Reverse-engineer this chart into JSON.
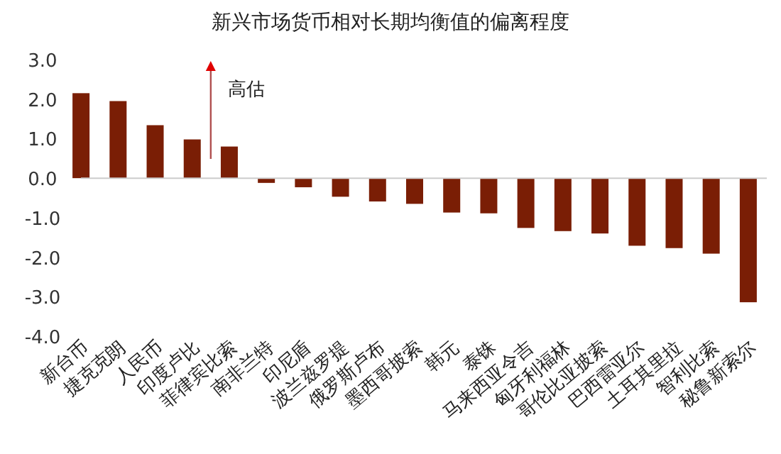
{
  "chart_data": {
    "type": "bar",
    "title": "新兴市场货币相对长期均衡值的偏离程度",
    "categories": [
      "新台币",
      "捷克克朗",
      "人民币",
      "印度卢比",
      "菲律宾比索",
      "南非兰特",
      "印尼盾",
      "波兰兹罗提",
      "俄罗斯卢布",
      "墨西哥披索",
      "韩元",
      "泰铢",
      "马来西亚令吉",
      "匈牙利福林",
      "哥伦比亚披索",
      "巴西雷亚尔",
      "土耳其里拉",
      "智利比索",
      "秘鲁新索尔"
    ],
    "values": [
      2.15,
      1.95,
      1.34,
      0.98,
      0.8,
      -0.12,
      -0.23,
      -0.47,
      -0.59,
      -0.65,
      -0.87,
      -0.89,
      -1.26,
      -1.34,
      -1.4,
      -1.71,
      -1.77,
      -1.91,
      -3.14
    ],
    "color": "#7a1e05",
    "ylim": [
      -4,
      3
    ],
    "yticks": [
      {
        "value": 3,
        "label": "3.0"
      },
      {
        "value": 2,
        "label": "2.0"
      },
      {
        "value": 1,
        "label": "1.0"
      },
      {
        "value": 0,
        "label": "0.0"
      },
      {
        "value": -1,
        "label": "-1.0"
      },
      {
        "value": -2,
        "label": "-2.0"
      },
      {
        "value": -3,
        "label": "-3.0"
      },
      {
        "value": -4,
        "label": "-4.0"
      }
    ],
    "annotations": [
      "高估"
    ]
  }
}
